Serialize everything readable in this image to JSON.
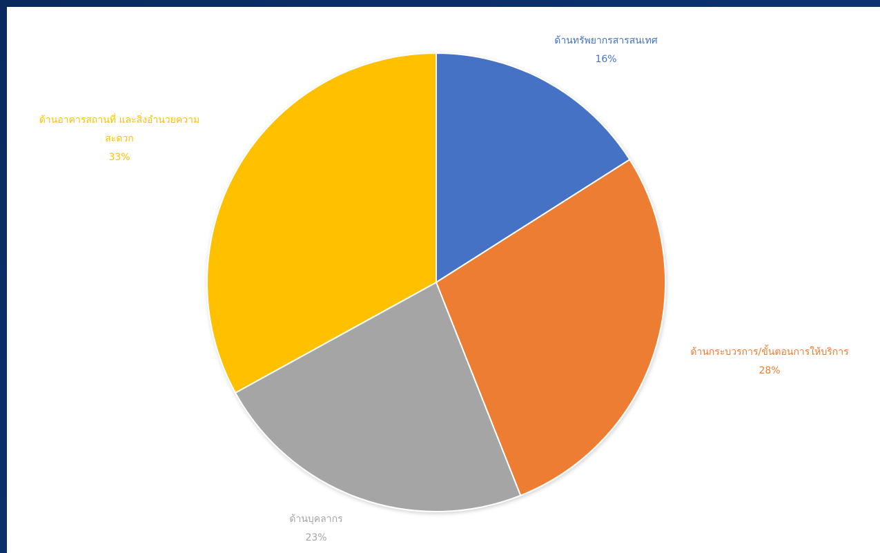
{
  "chart_data": {
    "type": "pie",
    "title": "",
    "start_angle_deg": 0,
    "direction": "clockwise",
    "slices": [
      {
        "label": "ด้านทรัพยากรสารสนเทศ",
        "value": 16,
        "value_label": "16%",
        "color": "#4472c4"
      },
      {
        "label": "ด้านกระบวรการ/ขั้นตอนการให้บริการ",
        "value": 28,
        "value_label": "28%",
        "color": "#ed7d31"
      },
      {
        "label": "ด้านบุคลากร",
        "value": 23,
        "value_label": "23%",
        "color": "#a5a5a5"
      },
      {
        "label": "ด้านอาคารสถานที่ และสิ่งอำนวยความสะดวก",
        "value_label": "33%",
        "value": 33,
        "color": "#ffc000",
        "label_lines": [
          "ด้านอาคารสถานที่ และสิ่งอำนวยความ",
          "สะดวก"
        ]
      }
    ],
    "legend": "none",
    "data_labels": "outside"
  },
  "colors": {
    "frame_bg": "#0b2a5c",
    "panel_bg": "#ffffff"
  }
}
